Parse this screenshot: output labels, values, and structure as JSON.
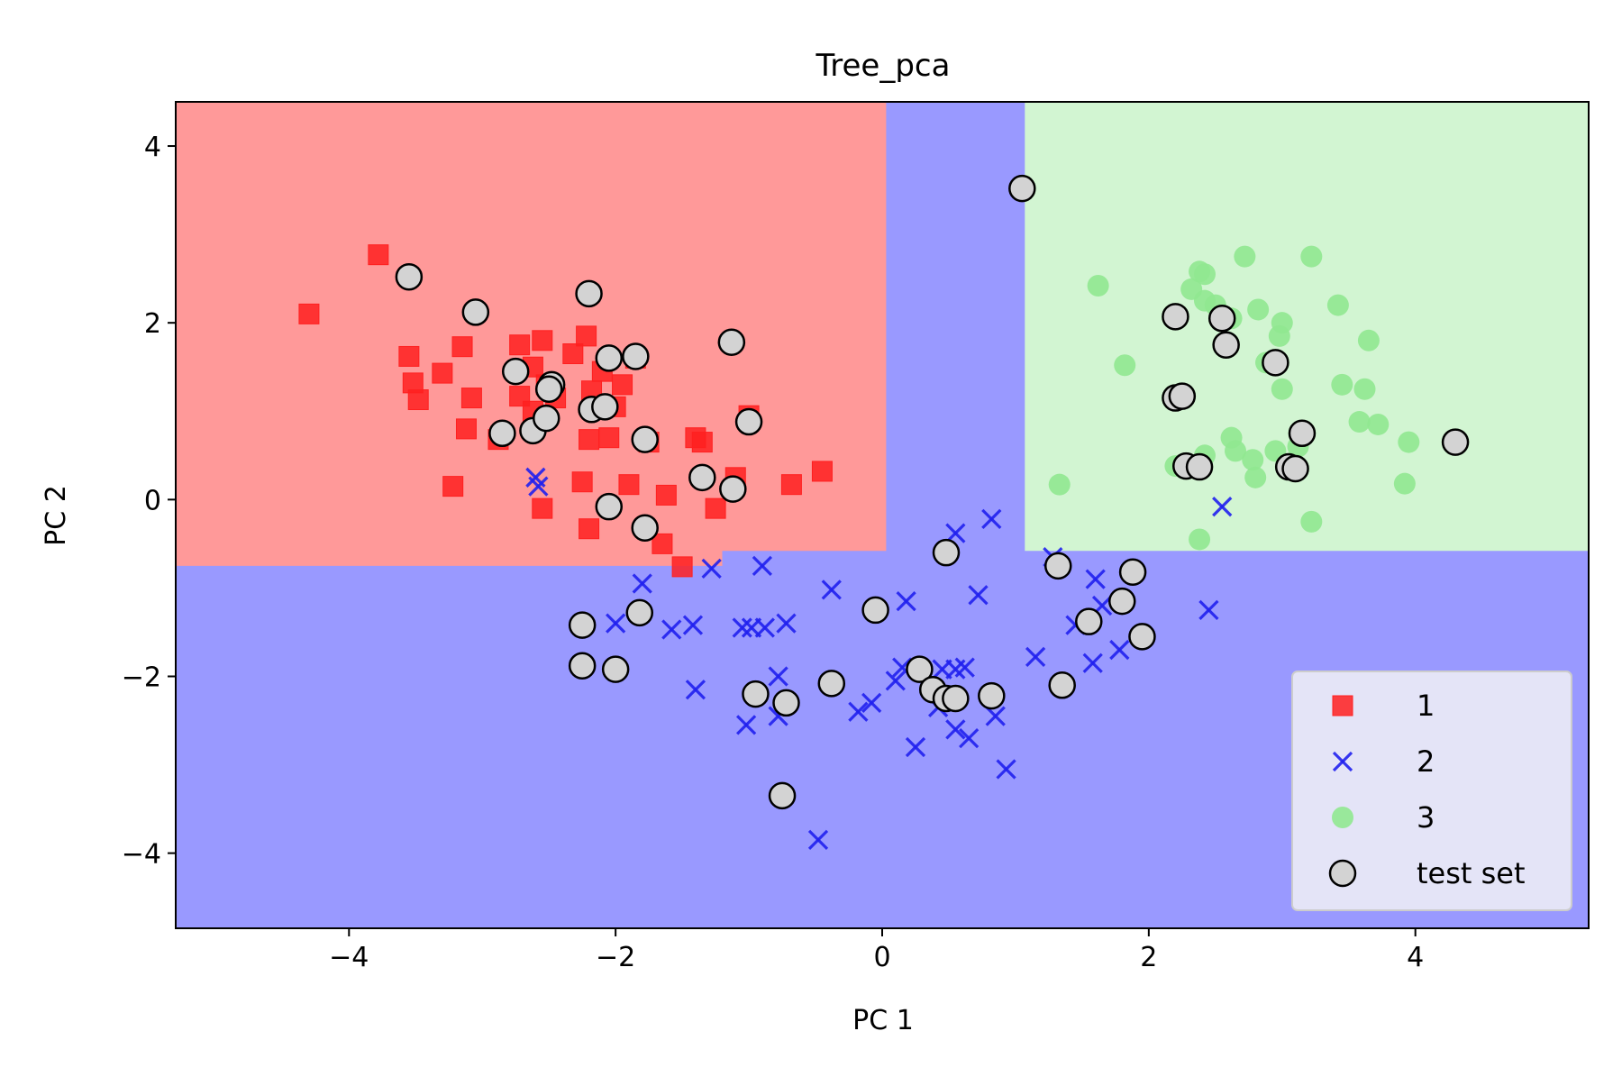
{
  "chart_data": {
    "type": "scatter",
    "title": "Tree_pca",
    "xlabel": "PC 1",
    "ylabel": "PC 2",
    "xlim": [
      -5.3,
      5.3
    ],
    "ylim": [
      -4.85,
      4.5
    ],
    "x_ticks": [
      -4,
      -2,
      0,
      2,
      4
    ],
    "x_tick_labels": [
      "−4",
      "−2",
      "0",
      "2",
      "4"
    ],
    "y_ticks": [
      -4,
      -2,
      0,
      2,
      4
    ],
    "y_tick_labels": [
      "−4",
      "−2",
      "0",
      "2",
      "4"
    ],
    "grid": false,
    "legend_position": "lower right",
    "decision_regions": [
      {
        "class": "1",
        "color": "#ff9999",
        "polygon": [
          [
            -5.3,
            4.5
          ],
          [
            0.03,
            4.5
          ],
          [
            0.03,
            -0.58
          ],
          [
            -1.2,
            -0.58
          ],
          [
            -1.2,
            -0.75
          ],
          [
            -5.3,
            -0.75
          ]
        ]
      },
      {
        "class": "3",
        "color": "#d2f5d2",
        "polygon": [
          [
            1.07,
            4.5
          ],
          [
            5.3,
            4.5
          ],
          [
            5.3,
            -0.58
          ],
          [
            1.07,
            -0.58
          ]
        ]
      }
    ],
    "background_color": "#9999ff",
    "series": [
      {
        "name": "1",
        "marker": "square",
        "color": "#ff2020",
        "points": [
          [
            -4.3,
            2.1
          ],
          [
            -3.78,
            2.77
          ],
          [
            -3.55,
            1.62
          ],
          [
            -3.52,
            1.32
          ],
          [
            -3.48,
            1.13
          ],
          [
            -3.3,
            1.43
          ],
          [
            -3.15,
            1.73
          ],
          [
            -3.12,
            0.8
          ],
          [
            -3.08,
            1.15
          ],
          [
            -3.22,
            0.15
          ],
          [
            -2.88,
            0.68
          ],
          [
            -2.72,
            1.75
          ],
          [
            -2.72,
            1.17
          ],
          [
            -2.62,
            1.5
          ],
          [
            -2.62,
            1.0
          ],
          [
            -2.55,
            1.8
          ],
          [
            -2.52,
            1.3
          ],
          [
            -2.45,
            1.15
          ],
          [
            -2.32,
            1.65
          ],
          [
            -2.22,
            1.85
          ],
          [
            -2.18,
            1.23
          ],
          [
            -2.2,
            0.68
          ],
          [
            -2.1,
            1.45
          ],
          [
            -2.05,
            0.7
          ],
          [
            -2.0,
            1.05
          ],
          [
            -1.95,
            1.3
          ],
          [
            -1.85,
            1.6
          ],
          [
            -1.75,
            0.65
          ],
          [
            -1.9,
            0.17
          ],
          [
            -2.25,
            0.2
          ],
          [
            -2.2,
            -0.33
          ],
          [
            -2.55,
            -0.1
          ],
          [
            -1.62,
            0.05
          ],
          [
            -1.65,
            -0.5
          ],
          [
            -1.5,
            -0.76
          ],
          [
            -1.4,
            0.7
          ],
          [
            -1.35,
            0.65
          ],
          [
            -1.25,
            -0.1
          ],
          [
            -1.1,
            0.25
          ],
          [
            -1.0,
            0.95
          ],
          [
            -0.68,
            0.17
          ],
          [
            -0.45,
            0.32
          ]
        ]
      },
      {
        "name": "2",
        "marker": "x",
        "color": "#2020ee",
        "points": [
          [
            -2.6,
            0.25
          ],
          [
            -2.58,
            0.15
          ],
          [
            -2.0,
            -1.4
          ],
          [
            -1.8,
            -0.95
          ],
          [
            -1.58,
            -1.47
          ],
          [
            -1.42,
            -1.42
          ],
          [
            -1.4,
            -2.15
          ],
          [
            -1.28,
            -0.78
          ],
          [
            -1.05,
            -1.45
          ],
          [
            -1.02,
            -2.55
          ],
          [
            -0.98,
            -1.45
          ],
          [
            -0.9,
            -0.75
          ],
          [
            -0.88,
            -1.45
          ],
          [
            -0.78,
            -2.45
          ],
          [
            -0.78,
            -2.0
          ],
          [
            -0.72,
            -1.4
          ],
          [
            -0.48,
            -3.85
          ],
          [
            -0.38,
            -1.02
          ],
          [
            -0.18,
            -2.4
          ],
          [
            -0.08,
            -2.3
          ],
          [
            0.1,
            -2.05
          ],
          [
            0.15,
            -1.9
          ],
          [
            0.18,
            -1.15
          ],
          [
            0.25,
            -2.8
          ],
          [
            0.42,
            -2.35
          ],
          [
            0.45,
            -1.92
          ],
          [
            0.55,
            -1.92
          ],
          [
            0.55,
            -2.6
          ],
          [
            0.55,
            -0.38
          ],
          [
            0.62,
            -1.9
          ],
          [
            0.65,
            -2.7
          ],
          [
            0.72,
            -1.08
          ],
          [
            0.82,
            -0.22
          ],
          [
            0.85,
            -2.45
          ],
          [
            0.93,
            -3.05
          ],
          [
            1.15,
            -1.78
          ],
          [
            1.28,
            -0.65
          ],
          [
            1.45,
            -1.42
          ],
          [
            1.58,
            -1.85
          ],
          [
            1.6,
            -0.9
          ],
          [
            1.65,
            -1.2
          ],
          [
            1.78,
            -1.7
          ],
          [
            2.45,
            -1.25
          ],
          [
            2.55,
            -0.08
          ]
        ]
      },
      {
        "name": "3",
        "marker": "circle",
        "color": "#90e890",
        "points": [
          [
            1.33,
            0.17
          ],
          [
            1.62,
            2.42
          ],
          [
            1.82,
            1.52
          ],
          [
            2.2,
            0.38
          ],
          [
            2.32,
            2.38
          ],
          [
            2.38,
            2.58
          ],
          [
            2.42,
            2.55
          ],
          [
            2.42,
            2.25
          ],
          [
            2.38,
            0.38
          ],
          [
            2.42,
            0.5
          ],
          [
            2.38,
            -0.45
          ],
          [
            2.5,
            2.2
          ],
          [
            2.62,
            2.05
          ],
          [
            2.62,
            0.7
          ],
          [
            2.65,
            0.55
          ],
          [
            2.72,
            2.75
          ],
          [
            2.78,
            0.45
          ],
          [
            2.8,
            0.25
          ],
          [
            2.82,
            2.15
          ],
          [
            2.88,
            1.55
          ],
          [
            2.95,
            0.55
          ],
          [
            2.98,
            1.85
          ],
          [
            3.0,
            2.0
          ],
          [
            3.0,
            1.25
          ],
          [
            3.08,
            0.35
          ],
          [
            3.12,
            0.6
          ],
          [
            3.22,
            2.75
          ],
          [
            3.22,
            -0.25
          ],
          [
            3.42,
            2.2
          ],
          [
            3.45,
            1.3
          ],
          [
            3.58,
            0.88
          ],
          [
            3.62,
            1.25
          ],
          [
            3.65,
            1.8
          ],
          [
            3.72,
            0.85
          ],
          [
            3.92,
            0.18
          ],
          [
            3.95,
            0.65
          ]
        ]
      }
    ],
    "test_set": {
      "name": "test set",
      "marker": "circle",
      "color": "#d3d3d3",
      "edgecolor": "#000000",
      "points": [
        [
          -3.55,
          2.52
        ],
        [
          -3.05,
          2.12
        ],
        [
          -2.85,
          0.75
        ],
        [
          -2.75,
          1.45
        ],
        [
          -2.62,
          0.78
        ],
        [
          -2.52,
          0.92
        ],
        [
          -2.48,
          1.3
        ],
        [
          -2.5,
          1.25
        ],
        [
          -2.2,
          2.33
        ],
        [
          -2.18,
          1.02
        ],
        [
          -2.08,
          1.05
        ],
        [
          -2.05,
          1.6
        ],
        [
          -2.05,
          -0.08
        ],
        [
          -1.85,
          1.62
        ],
        [
          -1.78,
          0.68
        ],
        [
          -1.78,
          -0.32
        ],
        [
          -1.35,
          0.25
        ],
        [
          -1.13,
          1.78
        ],
        [
          -1.12,
          0.12
        ],
        [
          -1.0,
          0.88
        ],
        [
          -2.25,
          -1.42
        ],
        [
          -2.25,
          -1.88
        ],
        [
          -2.0,
          -1.92
        ],
        [
          -1.82,
          -1.28
        ],
        [
          -0.95,
          -2.2
        ],
        [
          -0.72,
          -2.3
        ],
        [
          -0.75,
          -3.35
        ],
        [
          -0.38,
          -2.08
        ],
        [
          -0.05,
          -1.25
        ],
        [
          0.28,
          -1.92
        ],
        [
          0.38,
          -2.15
        ],
        [
          0.48,
          -0.6
        ],
        [
          0.48,
          -2.25
        ],
        [
          0.55,
          -2.25
        ],
        [
          0.82,
          -2.22
        ],
        [
          1.05,
          3.52
        ],
        [
          1.32,
          -0.75
        ],
        [
          1.35,
          -2.1
        ],
        [
          1.55,
          -1.38
        ],
        [
          1.8,
          -1.15
        ],
        [
          1.88,
          -0.82
        ],
        [
          1.95,
          -1.55
        ],
        [
          2.2,
          2.07
        ],
        [
          2.2,
          1.15
        ],
        [
          2.25,
          1.17
        ],
        [
          2.28,
          0.38
        ],
        [
          2.38,
          0.37
        ],
        [
          2.55,
          2.05
        ],
        [
          2.58,
          1.75
        ],
        [
          2.95,
          1.55
        ],
        [
          3.05,
          0.37
        ],
        [
          3.1,
          0.35
        ],
        [
          3.15,
          0.75
        ],
        [
          4.3,
          0.65
        ]
      ]
    },
    "legend": [
      "1",
      "2",
      "3",
      "test set"
    ]
  }
}
